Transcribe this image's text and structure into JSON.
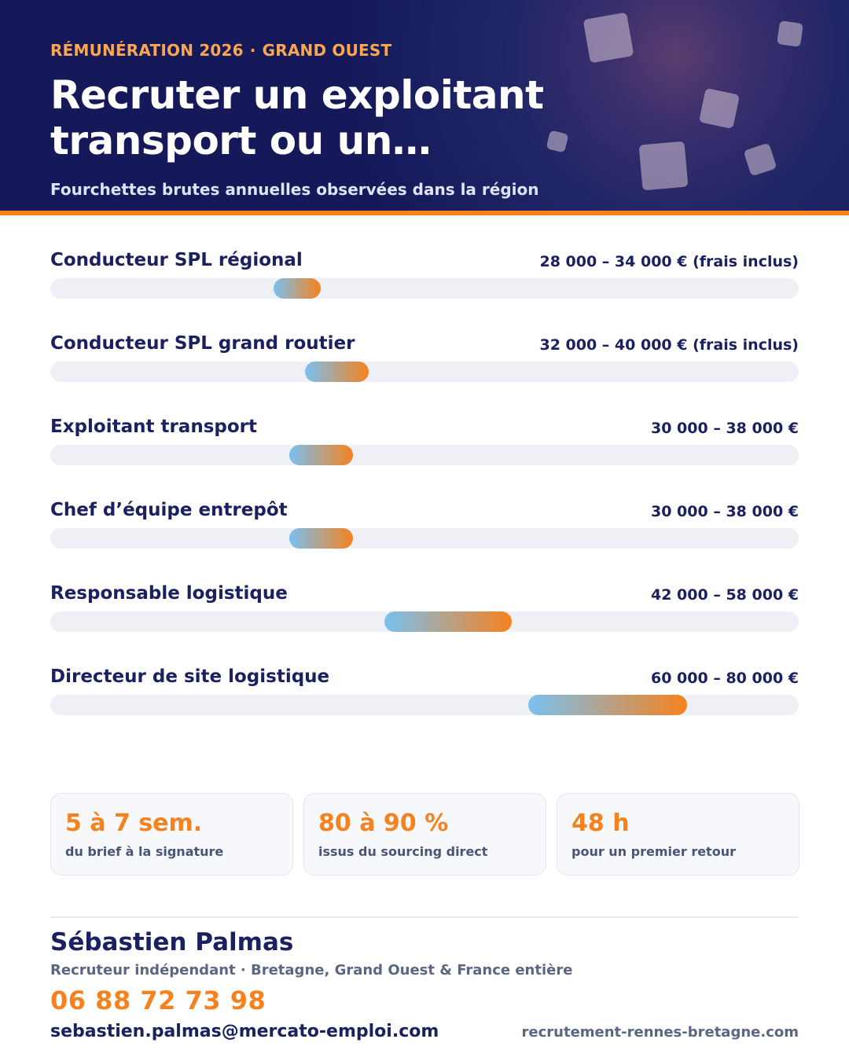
{
  "colors": {
    "navy": "#1b2160",
    "header_bg": "#15195a",
    "accent_orange": "#f5821f",
    "bar_start_blue": "#79c1f1",
    "track": "#eef0f6"
  },
  "header": {
    "kicker_left": "RÉMUNÉRATION 2026",
    "kicker_separator": "·",
    "kicker_right": "GRAND OUEST",
    "title": "Recruter un exploitant transport ou un…",
    "subtitle": "Fourchettes brutes annuelles observées dans la région"
  },
  "chart_data": {
    "type": "bar",
    "title": "",
    "xlim": [
      0,
      94000
    ],
    "unit": "€",
    "rows": [
      {
        "label": "Conducteur SPL régional",
        "display": "28 000 – 34 000 € (frais inclus)",
        "min": 28000,
        "max": 34000
      },
      {
        "label": "Conducteur SPL grand routier",
        "display": "32 000 – 40 000 € (frais inclus)",
        "min": 32000,
        "max": 40000
      },
      {
        "label": "Exploitant transport",
        "display": "30 000 – 38 000 €",
        "min": 30000,
        "max": 38000
      },
      {
        "label": "Chef d’équipe entrepôt",
        "display": "30 000 – 38 000 €",
        "min": 30000,
        "max": 38000
      },
      {
        "label": "Responsable logistique",
        "display": "42 000 – 58 000 €",
        "min": 42000,
        "max": 58000
      },
      {
        "label": "Directeur de site logistique",
        "display": "60 000 – 80 000 €",
        "min": 60000,
        "max": 80000
      }
    ]
  },
  "stats": [
    {
      "value": "5 à 7 sem.",
      "label": "du brief à la signature"
    },
    {
      "value": "80 à 90 %",
      "label": "issus du sourcing direct"
    },
    {
      "value": "48 h",
      "label": "pour un premier retour"
    }
  ],
  "contact": {
    "name": "Sébastien Palmas",
    "role": "Recruteur indépendant · Bretagne, Grand Ouest & France entière",
    "phone": "06 88 72 73 98",
    "email": "sebastien.palmas@mercato-emploi.com",
    "website": "recrutement-rennes-bretagne.com"
  }
}
